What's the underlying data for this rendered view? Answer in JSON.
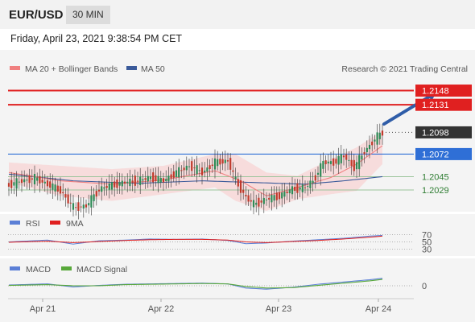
{
  "header": {
    "symbol": "EUR/USD",
    "timeframe": "30 MIN"
  },
  "datetime": "Friday, April 23, 2021 9:38:54 PM CET",
  "credit": "Research © 2021 Trading Central",
  "colors": {
    "ma20": "#f08080",
    "ma50": "#3a5a9a",
    "resistance": "#e02020",
    "support": "#2e7d32",
    "pivot": "#2f6fd6",
    "bull": "#2e8b57",
    "bear": "#c0392b",
    "arrow": "#2f5da8",
    "rsi": "#5b7fd6",
    "rsi9ma": "#e02020",
    "macd": "#5b7fd6",
    "macd_signal": "#58a83a"
  },
  "legend": {
    "ma20": "MA 20 + Bollinger Bands",
    "ma50": "MA 50",
    "rsi": "RSI",
    "rsi9ma": "9MA",
    "macd": "MACD",
    "macd_signal": "MACD Signal"
  },
  "chart_data": [
    {
      "type": "candlestick",
      "x_labels": [
        "Apr 21",
        "Apr 22",
        "Apr 23",
        "Apr 24"
      ],
      "price_range": [
        1.2004,
        1.2162
      ],
      "last_price": "1.2098",
      "levels": [
        {
          "value": 1.2148,
          "label": "1.2148",
          "kind": "resistance"
        },
        {
          "value": 1.2131,
          "label": "1.2131",
          "kind": "resistance"
        },
        {
          "value": 1.2098,
          "label": "1.2098",
          "kind": "last"
        },
        {
          "value": 1.2072,
          "label": "1.2072",
          "kind": "pivot"
        },
        {
          "value": 1.2045,
          "label": "1.2045",
          "kind": "support"
        },
        {
          "value": 1.2029,
          "label": "1.2029",
          "kind": "support"
        }
      ],
      "price_path": [
        [
          0,
          1.2035
        ],
        [
          5,
          1.204
        ],
        [
          10,
          1.2043
        ],
        [
          15,
          1.2036
        ],
        [
          20,
          1.2028
        ],
        [
          25,
          1.2008
        ],
        [
          30,
          1.201
        ],
        [
          35,
          1.203
        ],
        [
          40,
          1.2035
        ],
        [
          45,
          1.2038
        ],
        [
          50,
          1.204
        ],
        [
          55,
          1.2044
        ],
        [
          60,
          1.204
        ],
        [
          65,
          1.205
        ],
        [
          70,
          1.2058
        ],
        [
          75,
          1.205
        ],
        [
          80,
          1.2062
        ],
        [
          85,
          1.2064
        ],
        [
          88,
          1.204
        ],
        [
          92,
          1.202
        ],
        [
          95,
          1.2012
        ],
        [
          100,
          1.2018
        ],
        [
          105,
          1.2022
        ],
        [
          110,
          1.203
        ],
        [
          115,
          1.2032
        ],
        [
          118,
          1.204
        ],
        [
          122,
          1.2062
        ],
        [
          126,
          1.2062
        ],
        [
          130,
          1.207
        ],
        [
          134,
          1.2056
        ],
        [
          138,
          1.2075
        ],
        [
          142,
          1.209
        ],
        [
          145,
          1.2098
        ]
      ],
      "ma20": [
        [
          0,
          1.205
        ],
        [
          20,
          1.204
        ],
        [
          40,
          1.2036
        ],
        [
          60,
          1.2041
        ],
        [
          80,
          1.2052
        ],
        [
          90,
          1.204
        ],
        [
          100,
          1.2022
        ],
        [
          112,
          1.2032
        ],
        [
          125,
          1.2044
        ],
        [
          135,
          1.206
        ],
        [
          145,
          1.2082
        ]
      ],
      "ma50": [
        [
          0,
          1.2048
        ],
        [
          25,
          1.204
        ],
        [
          50,
          1.2037
        ],
        [
          75,
          1.204
        ],
        [
          95,
          1.2038
        ],
        [
          115,
          1.2036
        ],
        [
          130,
          1.204
        ],
        [
          145,
          1.2045
        ]
      ],
      "bollinger_upper": [
        [
          0,
          1.2062
        ],
        [
          20,
          1.2058
        ],
        [
          40,
          1.2054
        ],
        [
          60,
          1.2058
        ],
        [
          80,
          1.2072
        ],
        [
          88,
          1.2072
        ],
        [
          100,
          1.205
        ],
        [
          112,
          1.2046
        ],
        [
          125,
          1.2066
        ],
        [
          135,
          1.208
        ],
        [
          145,
          1.21
        ]
      ],
      "bollinger_lower": [
        [
          0,
          1.2038
        ],
        [
          20,
          1.2022
        ],
        [
          40,
          1.2016
        ],
        [
          60,
          1.2024
        ],
        [
          80,
          1.2032
        ],
        [
          88,
          1.2016
        ],
        [
          100,
          1.2004
        ],
        [
          112,
          1.2018
        ],
        [
          125,
          1.2024
        ],
        [
          135,
          1.2028
        ],
        [
          145,
          1.206
        ]
      ],
      "arrow": {
        "from": [
          145,
          1.2108
        ],
        "to": [
          167,
          1.2148
        ]
      }
    },
    {
      "type": "line",
      "name": "RSI",
      "ylim": [
        20,
        80
      ],
      "levels": [
        "70",
        "50",
        "30"
      ],
      "series": [
        {
          "name": "RSI",
          "values": [
            [
              0,
              50
            ],
            [
              15,
              55
            ],
            [
              25,
              44
            ],
            [
              35,
              53
            ],
            [
              45,
              55
            ],
            [
              55,
              58
            ],
            [
              65,
              57
            ],
            [
              75,
              58
            ],
            [
              85,
              54
            ],
            [
              92,
              45
            ],
            [
              100,
              47
            ],
            [
              110,
              52
            ],
            [
              120,
              56
            ],
            [
              130,
              60
            ],
            [
              140,
              66
            ],
            [
              145,
              68
            ]
          ]
        },
        {
          "name": "9MA",
          "values": [
            [
              0,
              49
            ],
            [
              15,
              52
            ],
            [
              25,
              48
            ],
            [
              35,
              51
            ],
            [
              45,
              54
            ],
            [
              55,
              56
            ],
            [
              65,
              57
            ],
            [
              75,
              57
            ],
            [
              85,
              55
            ],
            [
              92,
              50
            ],
            [
              100,
              48
            ],
            [
              110,
              51
            ],
            [
              120,
              54
            ],
            [
              130,
              58
            ],
            [
              140,
              63
            ],
            [
              145,
              66
            ]
          ]
        }
      ]
    },
    {
      "type": "line",
      "name": "MACD",
      "ylim": [
        -3,
        3
      ],
      "zero_label": "0",
      "series": [
        {
          "name": "MACD",
          "values": [
            [
              0,
              0.2
            ],
            [
              15,
              0.5
            ],
            [
              25,
              -0.3
            ],
            [
              35,
              0.1
            ],
            [
              45,
              0.4
            ],
            [
              55,
              0.5
            ],
            [
              65,
              0.6
            ],
            [
              75,
              0.7
            ],
            [
              85,
              0.5
            ],
            [
              92,
              -0.6
            ],
            [
              100,
              -0.9
            ],
            [
              110,
              -0.4
            ],
            [
              120,
              0.4
            ],
            [
              130,
              1.0
            ],
            [
              140,
              1.6
            ],
            [
              145,
              2.0
            ]
          ]
        },
        {
          "name": "MACD Signal",
          "values": [
            [
              0,
              0.1
            ],
            [
              15,
              0.3
            ],
            [
              25,
              0.0
            ],
            [
              35,
              0.0
            ],
            [
              45,
              0.3
            ],
            [
              55,
              0.4
            ],
            [
              65,
              0.5
            ],
            [
              75,
              0.6
            ],
            [
              85,
              0.5
            ],
            [
              92,
              -0.2
            ],
            [
              100,
              -0.6
            ],
            [
              110,
              -0.5
            ],
            [
              120,
              0.1
            ],
            [
              130,
              0.7
            ],
            [
              140,
              1.3
            ],
            [
              145,
              1.7
            ]
          ]
        }
      ]
    }
  ]
}
